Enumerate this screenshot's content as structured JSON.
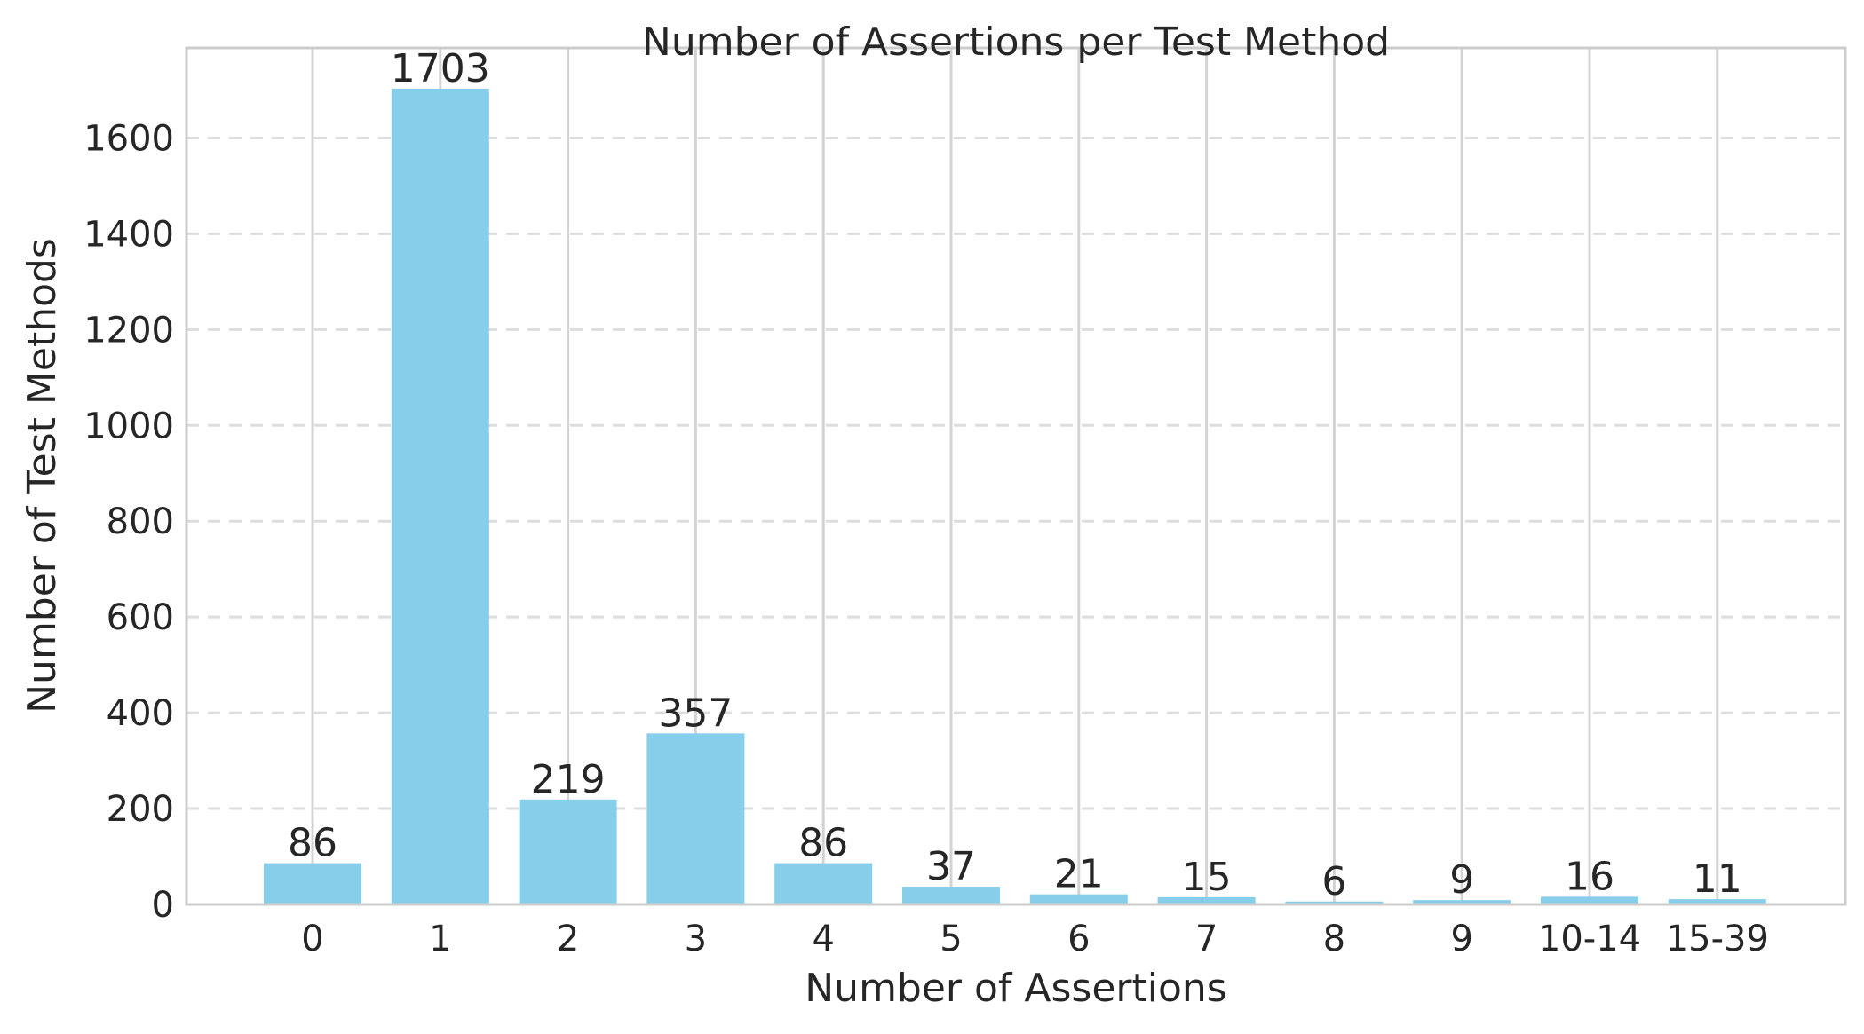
{
  "chart_data": {
    "type": "bar",
    "title": "Number of Assertions per Test Method",
    "xlabel": "Number of Assertions",
    "ylabel": "Number of Test Methods",
    "categories": [
      "0",
      "1",
      "2",
      "3",
      "4",
      "5",
      "6",
      "7",
      "8",
      "9",
      "10-14",
      "15-39"
    ],
    "values": [
      86,
      1703,
      219,
      357,
      86,
      37,
      21,
      15,
      6,
      9,
      16,
      11
    ],
    "data_labels": [
      "86",
      "1703",
      "219",
      "357",
      "86",
      "37",
      "21",
      "15",
      "6",
      "9",
      "16",
      "11"
    ],
    "ylim": [
      0,
      1788
    ],
    "yticks": [
      0,
      200,
      400,
      600,
      800,
      1000,
      1200,
      1400,
      1600
    ],
    "ytick_labels": [
      "0",
      "200",
      "400",
      "600",
      "800",
      "1000",
      "1200",
      "1400",
      "1600"
    ],
    "grid": true,
    "bar_color": "#87ceeb"
  }
}
